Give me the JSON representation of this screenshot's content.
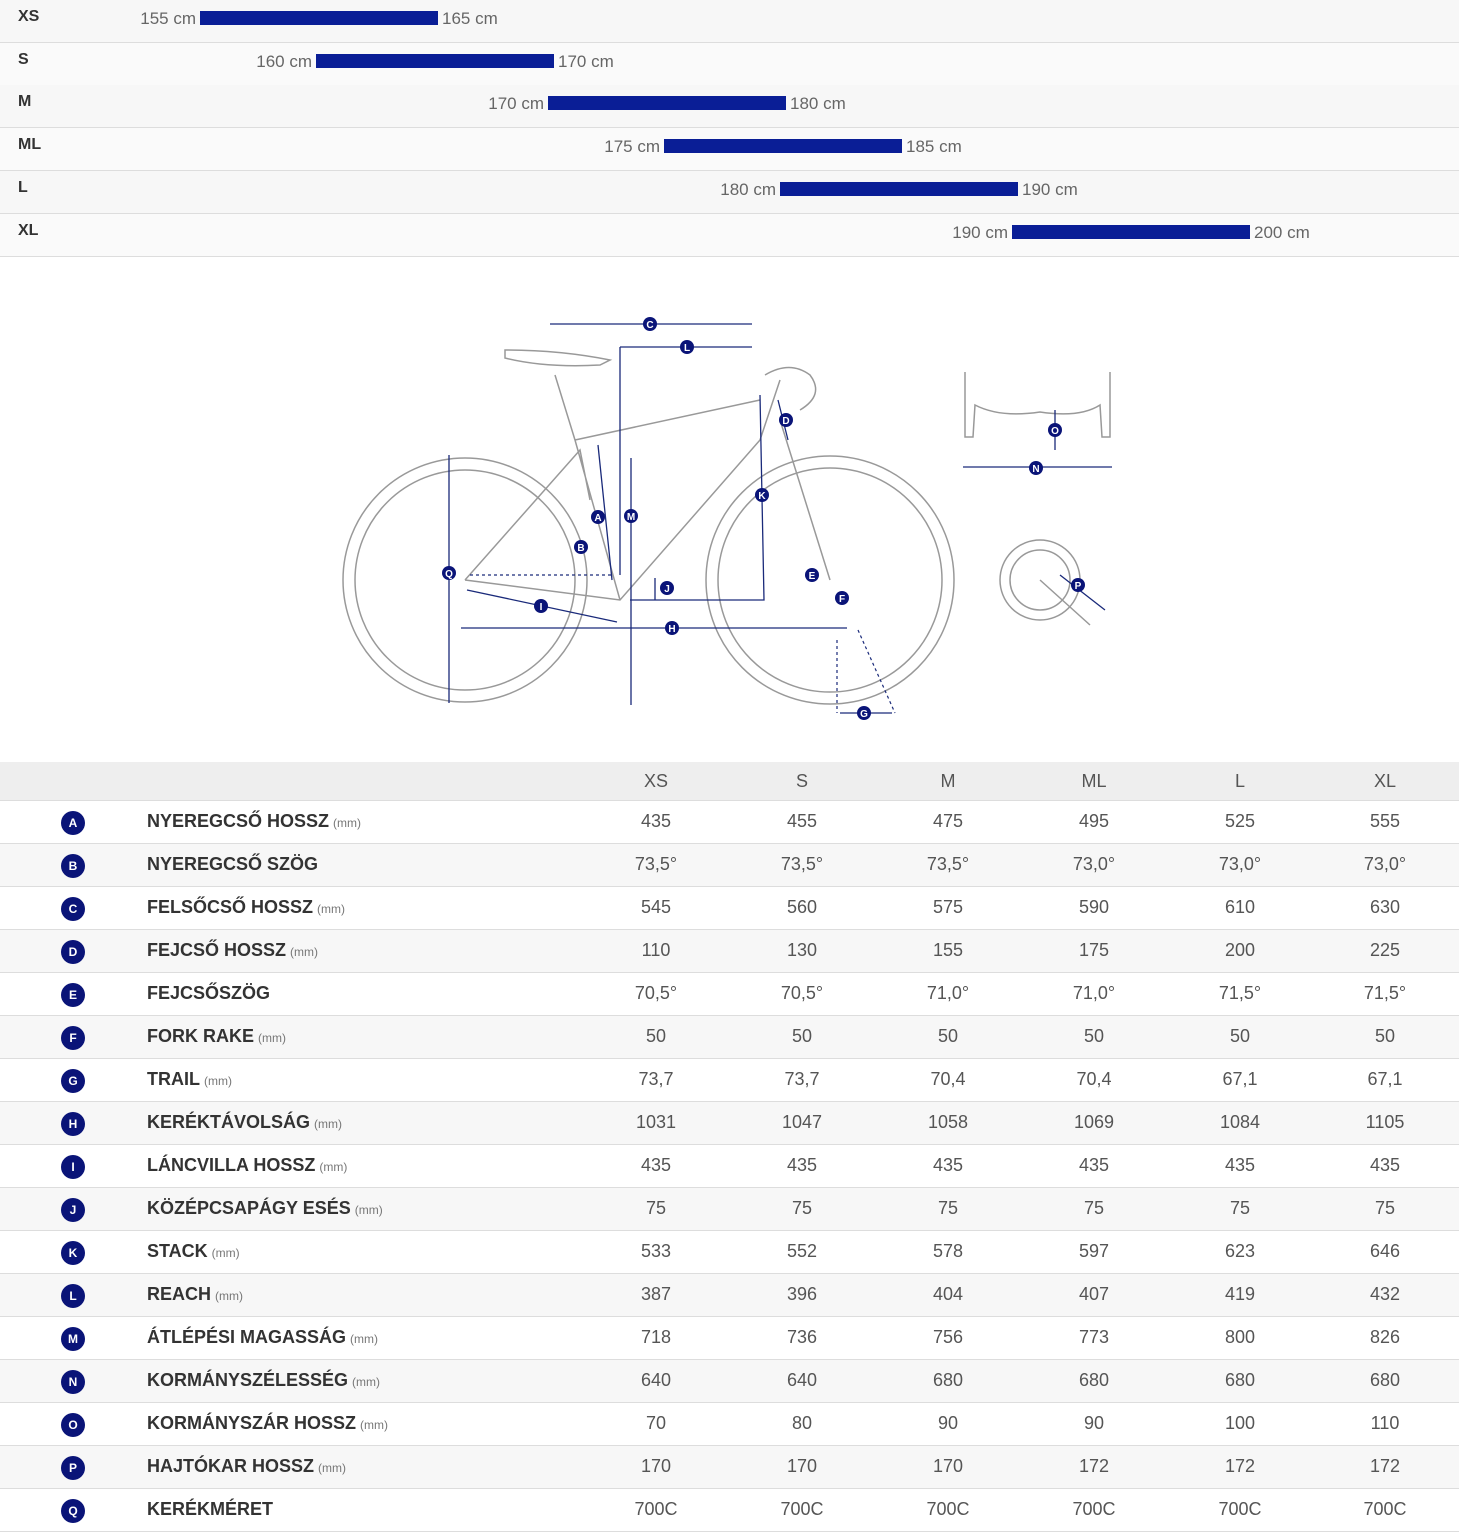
{
  "sizes": [
    {
      "size": "XS",
      "from": "155 cm",
      "to": "165 cm"
    },
    {
      "size": "S",
      "from": "160 cm",
      "to": "170 cm"
    },
    {
      "size": "M",
      "from": "170 cm",
      "to": "180 cm"
    },
    {
      "size": "ML",
      "from": "175 cm",
      "to": "185 cm"
    },
    {
      "size": "L",
      "from": "180 cm",
      "to": "190 cm"
    },
    {
      "size": "XL",
      "from": "190 cm",
      "to": "200 cm"
    }
  ],
  "geometry": {
    "columns": [
      "XS",
      "S",
      "M",
      "ML",
      "L",
      "XL"
    ],
    "rows": [
      {
        "letter": "A",
        "name": "NYEREGCSŐ HOSSZ",
        "unit": "(mm)",
        "values": [
          "435",
          "455",
          "475",
          "495",
          "525",
          "555"
        ]
      },
      {
        "letter": "B",
        "name": "NYEREGCSŐ SZÖG",
        "values": [
          "73,5°",
          "73,5°",
          "73,5°",
          "73,0°",
          "73,0°",
          "73,0°"
        ]
      },
      {
        "letter": "C",
        "name": "FELSŐCSŐ HOSSZ",
        "unit": "(mm)",
        "values": [
          "545",
          "560",
          "575",
          "590",
          "610",
          "630"
        ]
      },
      {
        "letter": "D",
        "name": "FEJCSŐ HOSSZ",
        "unit": "(mm)",
        "values": [
          "110",
          "130",
          "155",
          "175",
          "200",
          "225"
        ]
      },
      {
        "letter": "E",
        "name": "FEJCSŐSZÖG",
        "values": [
          "70,5°",
          "70,5°",
          "71,0°",
          "71,0°",
          "71,5°",
          "71,5°"
        ]
      },
      {
        "letter": "F",
        "name": "FORK RAKE",
        "unit": "(mm)",
        "values": [
          "50",
          "50",
          "50",
          "50",
          "50",
          "50"
        ]
      },
      {
        "letter": "G",
        "name": "TRAIL",
        "unit": "(mm)",
        "values": [
          "73,7",
          "73,7",
          "70,4",
          "70,4",
          "67,1",
          "67,1"
        ]
      },
      {
        "letter": "H",
        "name": "KERÉKTÁVOLSÁG",
        "unit": "(mm)",
        "values": [
          "1031",
          "1047",
          "1058",
          "1069",
          "1084",
          "1105"
        ]
      },
      {
        "letter": "I",
        "name": "LÁNCVILLA HOSSZ",
        "unit": "(mm)",
        "values": [
          "435",
          "435",
          "435",
          "435",
          "435",
          "435"
        ]
      },
      {
        "letter": "J",
        "name": "KÖZÉPCSAPÁGY ESÉS",
        "unit": "(mm)",
        "values": [
          "75",
          "75",
          "75",
          "75",
          "75",
          "75"
        ]
      },
      {
        "letter": "K",
        "name": "STACK",
        "unit": "(mm)",
        "values": [
          "533",
          "552",
          "578",
          "597",
          "623",
          "646"
        ]
      },
      {
        "letter": "L",
        "name": "REACH",
        "unit": "(mm)",
        "values": [
          "387",
          "396",
          "404",
          "407",
          "419",
          "432"
        ]
      },
      {
        "letter": "M",
        "name": "ÁTLÉPÉSI MAGASSÁG",
        "unit": "(mm)",
        "values": [
          "718",
          "736",
          "756",
          "773",
          "800",
          "826"
        ]
      },
      {
        "letter": "N",
        "name": "KORMÁNYSZÉLESSÉG",
        "unit": "(mm)",
        "values": [
          "640",
          "640",
          "680",
          "680",
          "680",
          "680"
        ]
      },
      {
        "letter": "O",
        "name": "KORMÁNYSZÁR HOSSZ",
        "unit": "(mm)",
        "values": [
          "70",
          "80",
          "90",
          "90",
          "100",
          "110"
        ]
      },
      {
        "letter": "P",
        "name": "HAJTÓKAR HOSSZ",
        "unit": "(mm)",
        "values": [
          "170",
          "170",
          "170",
          "172",
          "172",
          "172"
        ]
      },
      {
        "letter": "Q",
        "name": "KERÉKMÉRET",
        "values": [
          "700C",
          "700C",
          "700C",
          "700C",
          "700C",
          "700C"
        ]
      }
    ]
  }
}
